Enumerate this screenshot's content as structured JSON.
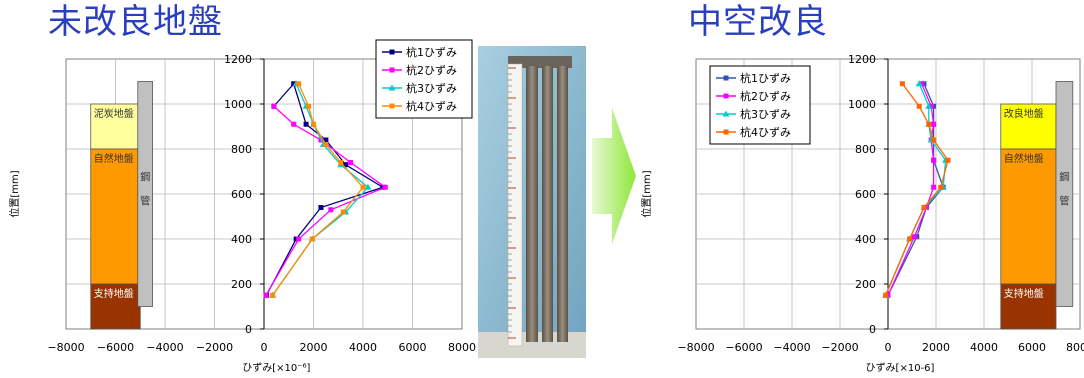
{
  "titles": {
    "left": "未改良地盤",
    "right": "中空改良"
  },
  "chart_data": [
    {
      "type": "line",
      "title": "未改良地盤",
      "xlabel": "ひずみ[×10⁻⁶]",
      "ylabel": "位置[mm]",
      "xlim": [
        -8000,
        8000
      ],
      "ylim": [
        0,
        1200
      ],
      "xticks": [
        -8000,
        -6000,
        -4000,
        -2000,
        0,
        2000,
        4000,
        6000,
        8000
      ],
      "yticks": [
        0,
        200,
        400,
        600,
        800,
        1000,
        1200
      ],
      "xtick_labels": [
        "−8000",
        "−6000",
        "−4000",
        "−2000",
        "0",
        "2000",
        "4000",
        "6000",
        "8000"
      ],
      "ytick_labels": [
        "0",
        "200",
        "400",
        "600",
        "800",
        "1000",
        "1200"
      ],
      "grid": true,
      "legend_position": "top-right",
      "series": [
        {
          "name": "杭1ひずみ",
          "color": "#000080",
          "marker": "square",
          "x": [
            100,
            1300,
            2300,
            4800,
            3300,
            2500,
            1700,
            1200,
            400
          ],
          "y": [
            150,
            400,
            540,
            630,
            730,
            840,
            910,
            1090,
            990
          ]
        },
        {
          "name": "杭2ひずみ",
          "color": "#ff00ff",
          "marker": "square",
          "x": [
            80,
            1400,
            2700,
            4900,
            3500,
            2300,
            1200,
            400
          ],
          "y": [
            150,
            400,
            530,
            630,
            740,
            840,
            910,
            990
          ]
        },
        {
          "name": "杭3ひずみ",
          "color": "#00cccc",
          "marker": "triangle",
          "x": [
            350,
            1950,
            3300,
            4200,
            3100,
            2400,
            2000,
            1700,
            1300
          ],
          "y": [
            150,
            400,
            520,
            630,
            730,
            820,
            910,
            990,
            1090
          ]
        },
        {
          "name": "杭4ひずみ",
          "color": "#ff8c00",
          "marker": "square",
          "x": [
            350,
            1950,
            3200,
            4000,
            3100,
            2500,
            2000,
            1800,
            1400
          ],
          "y": [
            150,
            400,
            520,
            630,
            740,
            820,
            910,
            990,
            1090
          ]
        }
      ],
      "layers": [
        {
          "label": "泥炭地盤",
          "from": 1000,
          "to": 800,
          "color": "#ffff9f"
        },
        {
          "label": "自然地盤",
          "from": 800,
          "to": 200,
          "color": "#ff9900"
        },
        {
          "label": "支持地盤",
          "from": 200,
          "to": 0,
          "color": "#993300"
        }
      ],
      "pipe": {
        "label": "鋼管",
        "from": 100,
        "to": 1100,
        "color": "#c0c0c0"
      }
    },
    {
      "type": "line",
      "title": "中空改良",
      "xlabel": "ひずみ[×10-6]",
      "ylabel": "位置[mm]",
      "xlim": [
        -8000,
        8000
      ],
      "ylim": [
        0,
        1200
      ],
      "xticks": [
        -8000,
        -6000,
        -4000,
        -2000,
        0,
        2000,
        4000,
        6000,
        8000
      ],
      "yticks": [
        0,
        200,
        400,
        600,
        800,
        1000,
        1200
      ],
      "xtick_labels": [
        "−8000",
        "−6000",
        "−4000",
        "−2000",
        "0",
        "2000",
        "4000",
        "6000",
        "8000"
      ],
      "ytick_labels": [
        "0",
        "200",
        "400",
        "600",
        "800",
        "1000",
        "1200"
      ],
      "grid": true,
      "legend_position": "top-left",
      "series": [
        {
          "name": "杭1ひずみ",
          "color": "#3355aa",
          "marker": "square",
          "x": [
            0,
            1200,
            1600,
            2300,
            1900,
            1900,
            1900,
            1900,
            1500
          ],
          "y": [
            150,
            410,
            540,
            630,
            750,
            840,
            910,
            990,
            1090
          ]
        },
        {
          "name": "杭2ひずみ",
          "color": "#ff00ff",
          "marker": "square",
          "x": [
            0,
            1100,
            1600,
            1900,
            1900,
            1800,
            1900,
            1800,
            1400
          ],
          "y": [
            150,
            410,
            540,
            630,
            750,
            840,
            910,
            990,
            1090
          ]
        },
        {
          "name": "杭3ひずみ",
          "color": "#00cccc",
          "marker": "triangle",
          "x": [
            -100,
            900,
            1500,
            2300,
            2400,
            1800,
            1700,
            1700,
            1300
          ],
          "y": [
            150,
            400,
            540,
            630,
            750,
            840,
            910,
            990,
            1090
          ]
        },
        {
          "name": "杭4ひずみ",
          "color": "#ff6600",
          "marker": "square",
          "x": [
            -100,
            900,
            1500,
            2200,
            2500,
            1900,
            1700,
            1300,
            600
          ],
          "y": [
            150,
            400,
            540,
            630,
            750,
            840,
            910,
            990,
            1090
          ]
        }
      ],
      "layers": [
        {
          "label": "改良地盤",
          "from": 1000,
          "to": 800,
          "color": "#ffff00"
        },
        {
          "label": "自然地盤",
          "from": 800,
          "to": 200,
          "color": "#ff9900"
        },
        {
          "label": "支持地盤",
          "from": 200,
          "to": 0,
          "color": "#993300"
        }
      ],
      "pipe": {
        "label": "鋼管",
        "from": 100,
        "to": 1100,
        "color": "#c0c0c0"
      }
    }
  ]
}
